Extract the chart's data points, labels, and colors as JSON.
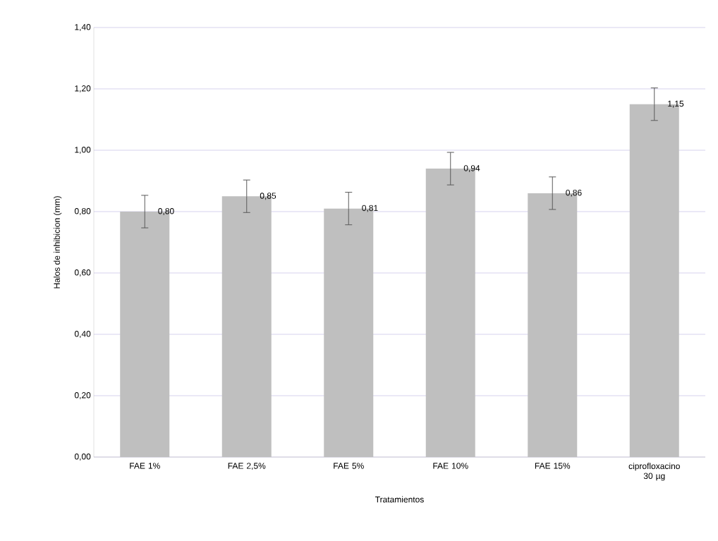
{
  "chart_data": {
    "type": "bar",
    "xlabel": "Tratamientos",
    "ylabel": "Halos de inhibicion (mm)",
    "categories": [
      "FAE 1%",
      "FAE 2,5%",
      "FAE 5%",
      "FAE 10%",
      "FAE 15%",
      "ciprofloxacino 30 µg"
    ],
    "values": [
      0.8,
      0.85,
      0.81,
      0.94,
      0.86,
      1.15
    ],
    "errors": [
      0.053,
      0.053,
      0.053,
      0.053,
      0.053,
      0.053
    ],
    "value_labels": [
      "0,80",
      "0,85",
      "0,81",
      "0,94",
      "0,86",
      "1,15"
    ],
    "color": "#bfbfbf",
    "ylim": [
      0,
      1.4
    ],
    "yticks": [
      {
        "value": 0,
        "label": "0,00"
      },
      {
        "value": 0.2,
        "label": "0,20"
      },
      {
        "value": 0.4,
        "label": "0,40"
      },
      {
        "value": 0.6,
        "label": "0,60"
      },
      {
        "value": 0.8,
        "label": "0,80"
      },
      {
        "value": 1.0,
        "label": "1,00"
      },
      {
        "value": 1.2,
        "label": "1,20"
      },
      {
        "value": 1.4,
        "label": "1,40"
      }
    ],
    "grid": "y"
  }
}
